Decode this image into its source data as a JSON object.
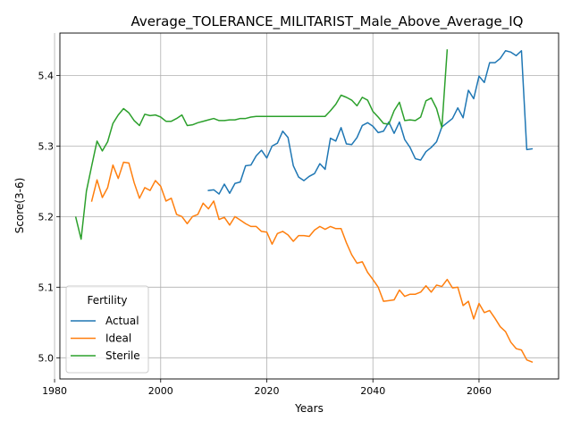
{
  "chart_data": {
    "type": "line",
    "title": "Average_TOLERANCE_MILITARIST_Male_Above_Average_IQ",
    "xlabel": "Years",
    "ylabel": "Score(3-6)",
    "xlim": [
      1981,
      2075
    ],
    "ylim": [
      4.97,
      5.46
    ],
    "xticks": [
      1980,
      2000,
      2020,
      2040,
      2060
    ],
    "xtick_labels": [
      "1980",
      "2000",
      "2020",
      "2040",
      "2060"
    ],
    "yticks": [
      5.0,
      5.1,
      5.2,
      5.3,
      5.4
    ],
    "ytick_labels": [
      "5.0",
      "5.1",
      "5.2",
      "5.3",
      "5.4"
    ],
    "grid": true,
    "legend": {
      "title": "Fertility",
      "placement": "lower-left"
    },
    "series": [
      {
        "name": "Actual",
        "color": "#1f77b4",
        "x": [
          2009,
          2010,
          2011,
          2012,
          2013,
          2014,
          2015,
          2016,
          2017,
          2018,
          2019,
          2020,
          2021,
          2022,
          2023,
          2024,
          2025,
          2026,
          2027,
          2028,
          2029,
          2030,
          2031,
          2032,
          2033,
          2034,
          2035,
          2036,
          2037,
          2038,
          2039,
          2040,
          2041,
          2042,
          2043,
          2044,
          2045,
          2046,
          2047,
          2048,
          2049,
          2050,
          2051,
          2052,
          2053,
          2054,
          2055,
          2056,
          2057,
          2058,
          2059,
          2060,
          2061,
          2062,
          2063,
          2064,
          2065,
          2066,
          2067,
          2068,
          2069,
          2070
        ],
        "y": [
          5.237,
          5.238,
          5.232,
          5.246,
          5.233,
          5.247,
          5.249,
          5.272,
          5.273,
          5.286,
          5.294,
          5.283,
          5.3,
          5.304,
          5.321,
          5.312,
          5.272,
          5.256,
          5.251,
          5.257,
          5.261,
          5.275,
          5.267,
          5.311,
          5.307,
          5.326,
          5.303,
          5.302,
          5.312,
          5.329,
          5.333,
          5.328,
          5.319,
          5.321,
          5.334,
          5.318,
          5.334,
          5.309,
          5.298,
          5.282,
          5.28,
          5.292,
          5.298,
          5.306,
          5.327,
          5.333,
          5.339,
          5.354,
          5.34,
          5.379,
          5.367,
          5.399,
          5.39,
          5.418,
          5.418,
          5.424,
          5.435,
          5.433,
          5.428,
          5.435,
          5.295,
          5.296
        ]
      },
      {
        "name": "Ideal",
        "color": "#ff7f0e",
        "x": [
          1987,
          1988,
          1989,
          1990,
          1991,
          1992,
          1993,
          1994,
          1995,
          1996,
          1997,
          1998,
          1999,
          2000,
          2001,
          2002,
          2003,
          2004,
          2005,
          2006,
          2007,
          2008,
          2009,
          2010,
          2011,
          2012,
          2013,
          2014,
          2015,
          2016,
          2017,
          2018,
          2019,
          2020,
          2021,
          2022,
          2023,
          2024,
          2025,
          2026,
          2027,
          2028,
          2029,
          2030,
          2031,
          2032,
          2033,
          2034,
          2035,
          2036,
          2037,
          2038,
          2039,
          2040,
          2041,
          2042,
          2043,
          2044,
          2045,
          2046,
          2047,
          2048,
          2049,
          2050,
          2051,
          2052,
          2053,
          2054,
          2055,
          2056,
          2057,
          2058,
          2059,
          2060,
          2061,
          2062,
          2063,
          2064,
          2065,
          2066,
          2067,
          2068,
          2069,
          2070
        ],
        "y": [
          5.222,
          5.252,
          5.227,
          5.241,
          5.273,
          5.254,
          5.277,
          5.276,
          5.248,
          5.226,
          5.241,
          5.237,
          5.251,
          5.243,
          5.222,
          5.226,
          5.203,
          5.2,
          5.19,
          5.2,
          5.203,
          5.219,
          5.211,
          5.222,
          5.196,
          5.199,
          5.188,
          5.2,
          5.195,
          5.19,
          5.186,
          5.186,
          5.179,
          5.178,
          5.161,
          5.176,
          5.179,
          5.174,
          5.165,
          5.173,
          5.173,
          5.172,
          5.181,
          5.186,
          5.182,
          5.186,
          5.183,
          5.183,
          5.163,
          5.146,
          5.134,
          5.136,
          5.121,
          5.111,
          5.1,
          5.08,
          5.081,
          5.082,
          5.096,
          5.087,
          5.09,
          5.09,
          5.093,
          5.102,
          5.093,
          5.103,
          5.101,
          5.111,
          5.099,
          5.1,
          5.074,
          5.08,
          5.055,
          5.077,
          5.064,
          5.067,
          5.056,
          5.044,
          5.037,
          5.022,
          5.013,
          5.011,
          4.997,
          4.994
        ]
      },
      {
        "name": "Sterile",
        "color": "#2ca02c",
        "x": [
          1984,
          1985,
          1986,
          1987,
          1988,
          1989,
          1990,
          1991,
          1992,
          1993,
          1994,
          1995,
          1996,
          1997,
          1998,
          1999,
          2000,
          2001,
          2002,
          2003,
          2004,
          2005,
          2006,
          2007,
          2008,
          2009,
          2010,
          2011,
          2012,
          2013,
          2014,
          2015,
          2016,
          2017,
          2018,
          2019,
          2020,
          2021,
          2022,
          2023,
          2024,
          2025,
          2026,
          2027,
          2028,
          2029,
          2030,
          2031,
          2032,
          2033,
          2034,
          2035,
          2036,
          2037,
          2038,
          2039,
          2040,
          2041,
          2042,
          2043,
          2044,
          2045,
          2046,
          2047,
          2048,
          2049,
          2050,
          2051,
          2052,
          2053,
          2054
        ],
        "y": [
          5.199,
          5.168,
          5.236,
          5.272,
          5.307,
          5.293,
          5.306,
          5.332,
          5.344,
          5.353,
          5.347,
          5.336,
          5.329,
          5.345,
          5.343,
          5.344,
          5.341,
          5.335,
          5.335,
          5.339,
          5.344,
          5.329,
          5.33,
          5.333,
          5.335,
          5.337,
          5.339,
          5.336,
          5.336,
          5.337,
          5.337,
          5.339,
          5.339,
          5.341,
          5.342,
          5.342,
          5.342,
          5.342,
          5.342,
          5.342,
          5.342,
          5.342,
          5.342,
          5.342,
          5.342,
          5.342,
          5.342,
          5.342,
          5.35,
          5.359,
          5.372,
          5.369,
          5.365,
          5.357,
          5.369,
          5.365,
          5.349,
          5.341,
          5.332,
          5.331,
          5.35,
          5.362,
          5.336,
          5.337,
          5.336,
          5.341,
          5.364,
          5.368,
          5.353,
          5.326,
          5.436
        ]
      }
    ]
  }
}
